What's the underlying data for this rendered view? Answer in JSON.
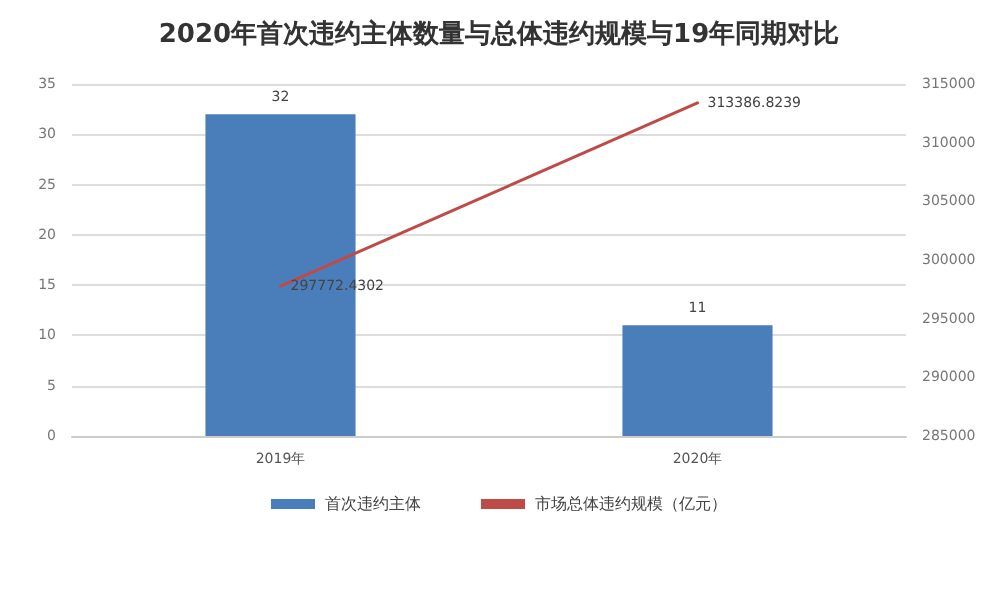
{
  "chart_data": {
    "type": "bar",
    "title": "2020年首次违约主体数量与总体违约规模与19年同期对比",
    "categories": [
      "2019年",
      "2020年"
    ],
    "series": [
      {
        "name": "首次违约主体",
        "color": "#4a7ebb",
        "values": [
          32,
          11
        ]
      },
      {
        "name": "市场总体违约规模（亿元）",
        "type": "line",
        "axis": "y2",
        "color": "#be4b48",
        "values": [
          297772.4302,
          313386.8239
        ],
        "marker": "none"
      }
    ],
    "data_labels": true,
    "ylim": [
      0,
      35
    ],
    "yticks": [
      0,
      5,
      10,
      15,
      20,
      25,
      30,
      35
    ],
    "y2lim": [
      285000,
      315000
    ],
    "y2ticks": [
      285000,
      290000,
      295000,
      300000,
      305000,
      310000,
      315000
    ],
    "grid": "y",
    "legend": "bottom"
  }
}
